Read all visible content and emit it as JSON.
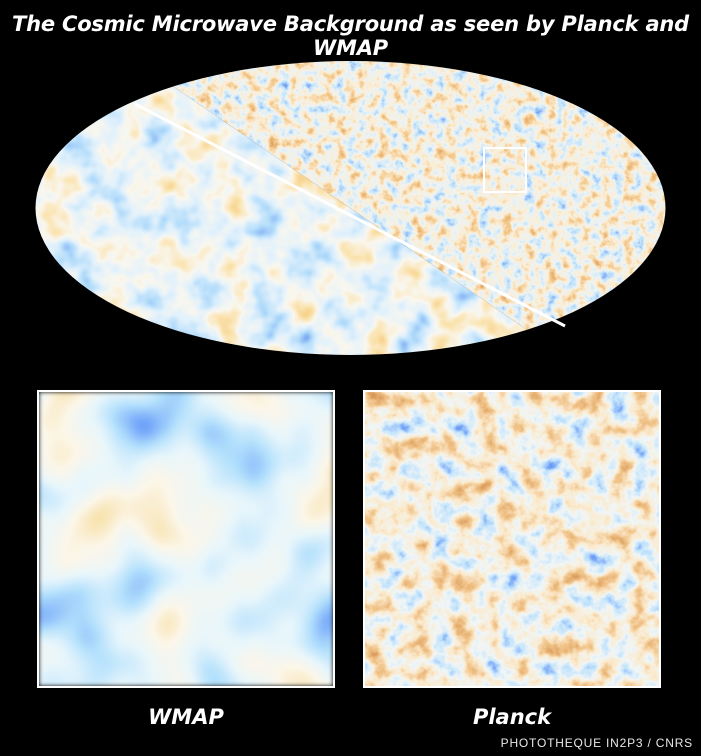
{
  "title": "The Cosmic Microwave Background as seen by Planck and WMAP",
  "panels": {
    "left_label": "WMAP",
    "right_label": "Planck"
  },
  "credit": "PHOTOTHEQUE IN2P3 / CNRS",
  "colors": {
    "background": "#000000",
    "cold": "#1f4fd6",
    "cool": "#7fc0f0",
    "neutral": "#f2ecd6",
    "warm": "#e8a53a",
    "hot": "#b0561c",
    "frame": "#ffffff"
  }
}
